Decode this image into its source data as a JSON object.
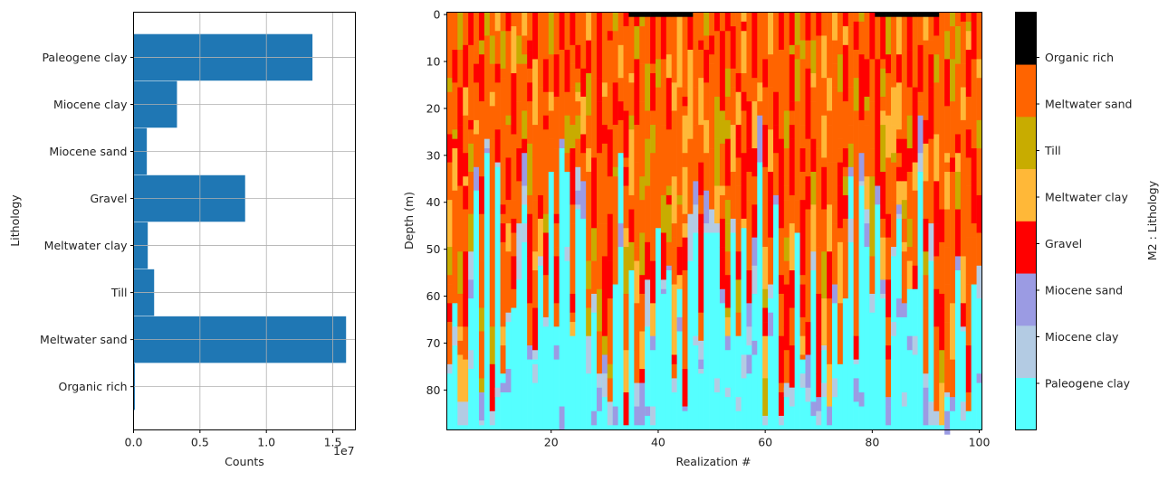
{
  "chart_data": [
    {
      "type": "bar",
      "orientation": "horizontal",
      "xlabel": "Counts",
      "ylabel": "Lithology",
      "x_offset_label": "1e7",
      "x_ticks": [
        "0.0",
        "0.5",
        "1.0",
        "1.5"
      ],
      "x_tick_values": [
        0,
        5000000,
        10000000,
        15000000
      ],
      "xlim": [
        0,
        16700000
      ],
      "grid": true,
      "bar_color": "#1f77b4",
      "categories": [
        "Organic rich",
        "Meltwater sand",
        "Till",
        "Meltwater clay",
        "Gravel",
        "Miocene sand",
        "Miocene clay",
        "Paleogene clay"
      ],
      "values": [
        100000,
        16000000,
        1550000,
        1070000,
        8400000,
        1000000,
        3270000,
        13470000
      ]
    },
    {
      "type": "heatmap",
      "xlabel": "Realization #",
      "ylabel": "Depth (m)",
      "x_ticks": [
        "20",
        "40",
        "60",
        "80",
        "100"
      ],
      "x_tick_values": [
        20,
        40,
        60,
        80,
        100
      ],
      "y_ticks": [
        "0",
        "10",
        "20",
        "30",
        "40",
        "50",
        "60",
        "70",
        "80"
      ],
      "y_tick_values": [
        0,
        10,
        20,
        30,
        40,
        50,
        60,
        70,
        80
      ],
      "xlim": [
        0.5,
        100.5
      ],
      "ylim": [
        88.5,
        -0.5
      ],
      "realizations": 100,
      "depth_cells": 89,
      "paleogene_clay_top_depth_m": [
        77,
        62,
        88,
        88,
        61,
        38,
        88,
        30,
        88,
        33,
        77,
        66,
        63,
        57,
        41,
        74,
        74,
        54,
        67,
        34,
        67,
        29,
        34,
        69,
        42,
        44,
        77,
        64,
        80,
        77,
        88,
        58,
        30,
        88,
        55,
        88,
        88,
        67,
        72,
        46,
        60,
        55,
        81,
        59,
        85,
        53,
        47,
        77,
        47,
        47,
        47,
        62,
        72,
        47,
        69,
        46,
        71,
        60,
        32,
        88,
        61,
        41,
        88,
        80,
        80,
        47,
        74,
        83,
        55,
        88,
        72,
        88,
        62,
        75,
        61,
        35,
        75,
        37,
        50,
        64,
        41,
        61,
        88,
        52,
        44,
        65,
        59,
        59,
        34,
        88,
        53,
        88,
        88,
        82,
        85,
        55,
        68,
        85,
        58,
        61
      ],
      "colorbar": {
        "label": "M2 : Lithology",
        "ticks": [
          "Paleogene clay",
          "Miocene clay",
          "Miocene sand",
          "Gravel",
          "Meltwater clay",
          "Till",
          "Meltwater sand",
          "Organic rich"
        ],
        "colors": [
          "#55ffff",
          "#b3cbe3",
          "#9b9be3",
          "#ff0000",
          "#ffb838",
          "#c8ac00",
          "#ff6400",
          "#000000"
        ]
      }
    }
  ]
}
